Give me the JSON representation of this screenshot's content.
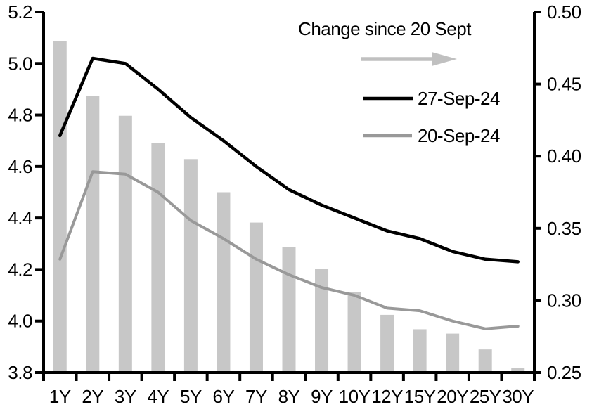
{
  "chart_data": {
    "type": "bar+line",
    "title": "",
    "categories": [
      "1Y",
      "2Y",
      "3Y",
      "4Y",
      "5Y",
      "6Y",
      "7Y",
      "8Y",
      "9Y",
      "10Y",
      "12Y",
      "15Y",
      "20Y",
      "25Y",
      "30Y"
    ],
    "left_axis": {
      "min": 3.8,
      "max": 5.2,
      "tick_values": [
        3.8,
        4.0,
        4.2,
        4.4,
        4.6,
        4.8,
        5.0,
        5.2
      ],
      "tick_labels": [
        "3.8",
        "4.0",
        "4.2",
        "4.4",
        "4.6",
        "4.8",
        "5.0",
        "5.2"
      ]
    },
    "right_axis": {
      "min": 0.25,
      "max": 0.5,
      "tick_values": [
        0.25,
        0.3,
        0.35,
        0.4,
        0.45,
        0.5
      ],
      "tick_labels": [
        "0.25",
        "0.30",
        "0.35",
        "0.40",
        "0.45",
        "0.50"
      ]
    },
    "bars": {
      "name": "Change since 20 Sept",
      "axis": "right",
      "color": "#c7c7c7",
      "values": [
        0.48,
        0.442,
        0.428,
        0.409,
        0.398,
        0.375,
        0.354,
        0.337,
        0.322,
        0.306,
        0.29,
        0.28,
        0.277,
        0.266,
        0.253
      ]
    },
    "series": [
      {
        "name": "27-Sep-24",
        "axis": "left",
        "color": "#000000",
        "values": [
          4.72,
          5.02,
          5.0,
          4.9,
          4.79,
          4.7,
          4.6,
          4.51,
          4.45,
          4.4,
          4.35,
          4.32,
          4.27,
          4.24,
          4.23
        ]
      },
      {
        "name": "20-Sep-24",
        "axis": "left",
        "color": "#999999",
        "values": [
          4.24,
          4.58,
          4.57,
          4.5,
          4.39,
          4.32,
          4.24,
          4.18,
          4.13,
          4.1,
          4.05,
          4.04,
          4.0,
          3.97,
          3.98
        ]
      }
    ],
    "legend": {
      "title": "Change since 20 Sept",
      "arrow_color": "#c0c0c0",
      "entries": [
        "27-Sep-24",
        "20-Sep-24"
      ],
      "position": "top-center"
    },
    "grid": false,
    "axis_color": "#000000"
  }
}
